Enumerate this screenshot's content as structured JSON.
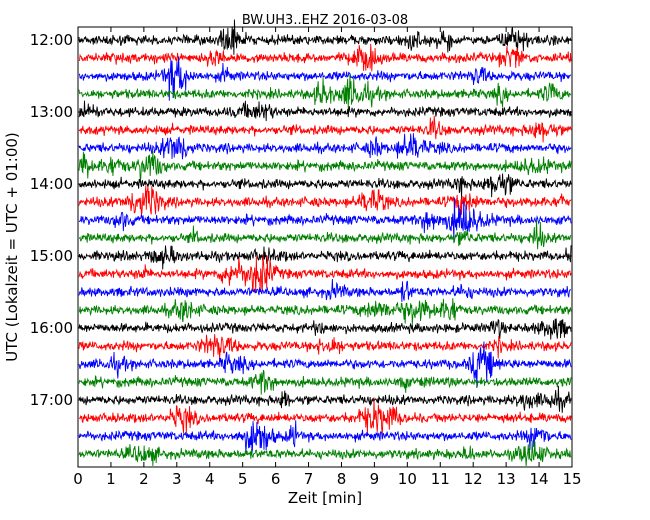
{
  "chart_data": {
    "type": "line",
    "title": "BW.UH3..EHZ 2016-03-08",
    "xlabel": "Zeit  [min]",
    "ylabel": "UTC (Lokalzeit = UTC + 01:00)",
    "xlim": [
      0,
      15
    ],
    "x_ticks": [
      "0",
      "1",
      "2",
      "3",
      "4",
      "5",
      "6",
      "7",
      "8",
      "9",
      "10",
      "11",
      "12",
      "13",
      "14",
      "15"
    ],
    "y_ticks": [
      "12:00",
      "13:00",
      "14:00",
      "15:00",
      "16:00",
      "17:00"
    ],
    "trace_start": "12:00",
    "trace_end": "17:45",
    "trace_interval_min": 15,
    "trace_colors": [
      "#000000",
      "#ff0000",
      "#0000ff",
      "#008000"
    ],
    "grid": false,
    "legend": "none"
  }
}
